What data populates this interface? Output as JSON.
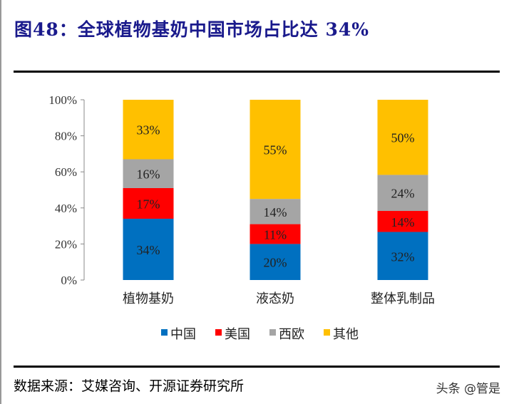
{
  "title": "图48：全球植物基奶中国市场占比达 34%",
  "footer": "数据来源：艾媒咨询、开源证券研究所",
  "watermark": "头条 @管是",
  "chart_data": {
    "type": "bar",
    "stacked": true,
    "normalized": true,
    "categories": [
      "植物基奶",
      "液态奶",
      "整体乳制品"
    ],
    "series": [
      {
        "name": "中国",
        "color": "#0070c0",
        "values": [
          34,
          20,
          32
        ]
      },
      {
        "name": "美国",
        "color": "#ff0000",
        "values": [
          17,
          11,
          14
        ]
      },
      {
        "name": "西欧",
        "color": "#a5a5a5",
        "values": [
          16,
          14,
          24
        ]
      },
      {
        "name": "其他",
        "color": "#ffc000",
        "values": [
          33,
          55,
          50
        ]
      }
    ],
    "yticks": [
      "0%",
      "20%",
      "40%",
      "60%",
      "80%",
      "100%"
    ],
    "ylim": [
      0,
      100
    ],
    "grid": false,
    "legend": "bottom"
  }
}
